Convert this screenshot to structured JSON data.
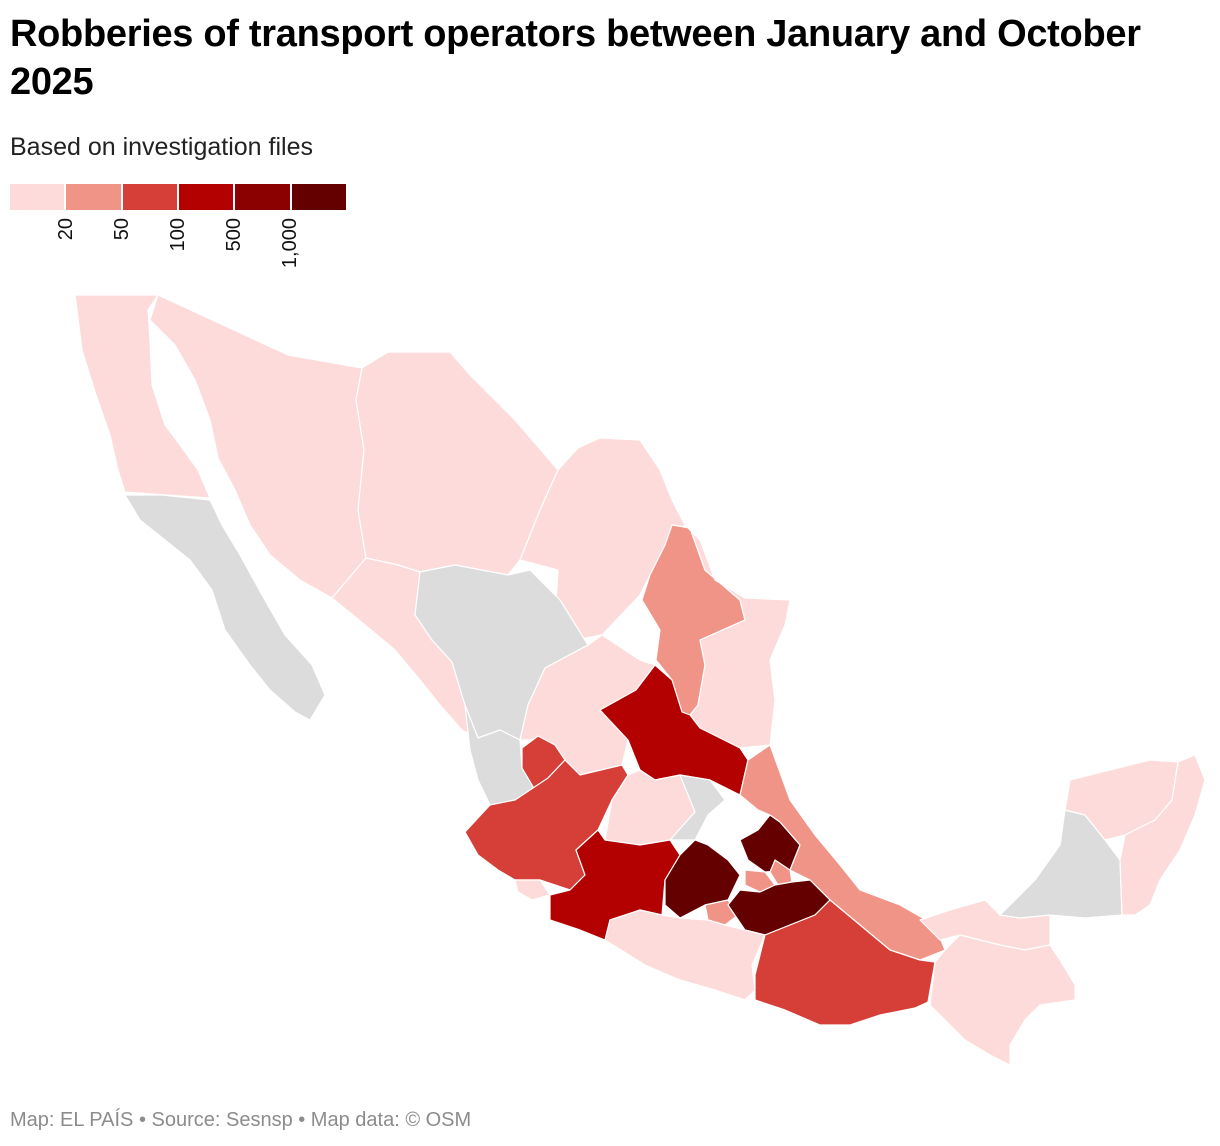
{
  "title": "Robberies of transport operators between January and October 2025",
  "subtitle": "Based on investigation files",
  "footer": "Map: EL PAÍS • Source: Sesnsp • Map data: © OSM",
  "colors": {
    "no_data": "#dcdcdc",
    "bin_1": "#fddbdb",
    "bin_2": "#f09488",
    "bin_3": "#d63f37",
    "bin_4": "#b30000",
    "bin_5": "#8b0000",
    "bin_6": "#650000"
  },
  "legend": {
    "bins": [
      "bin_1",
      "bin_2",
      "bin_3",
      "bin_4",
      "bin_5",
      "bin_6"
    ],
    "thresholds": [
      "20",
      "50",
      "100",
      "500",
      "1,000"
    ]
  },
  "states": [
    {
      "name": "Baja California",
      "bin": "bin_1"
    },
    {
      "name": "Baja California Sur",
      "bin": "no_data"
    },
    {
      "name": "Sonora",
      "bin": "bin_1"
    },
    {
      "name": "Chihuahua",
      "bin": "bin_1"
    },
    {
      "name": "Coahuila",
      "bin": "bin_1"
    },
    {
      "name": "Nuevo León",
      "bin": "bin_2"
    },
    {
      "name": "Tamaulipas",
      "bin": "bin_1"
    },
    {
      "name": "Sinaloa",
      "bin": "bin_1"
    },
    {
      "name": "Durango",
      "bin": "no_data"
    },
    {
      "name": "Zacatecas",
      "bin": "bin_1"
    },
    {
      "name": "San Luis Potosí",
      "bin": "bin_4"
    },
    {
      "name": "Nayarit",
      "bin": "no_data"
    },
    {
      "name": "Aguascalientes",
      "bin": "bin_3"
    },
    {
      "name": "Jalisco",
      "bin": "bin_3"
    },
    {
      "name": "Guanajuato",
      "bin": "bin_1"
    },
    {
      "name": "Querétaro",
      "bin": "no_data"
    },
    {
      "name": "Hidalgo",
      "bin": "bin_6"
    },
    {
      "name": "Veracruz",
      "bin": "bin_2"
    },
    {
      "name": "Colima",
      "bin": "bin_1"
    },
    {
      "name": "Michoacán",
      "bin": "bin_4"
    },
    {
      "name": "Estado de México",
      "bin": "bin_6"
    },
    {
      "name": "Ciudad de México",
      "bin": "bin_2"
    },
    {
      "name": "Morelos",
      "bin": "bin_2"
    },
    {
      "name": "Tlaxcala",
      "bin": "bin_2"
    },
    {
      "name": "Puebla",
      "bin": "bin_6"
    },
    {
      "name": "Guerrero",
      "bin": "bin_1"
    },
    {
      "name": "Oaxaca",
      "bin": "bin_3"
    },
    {
      "name": "Tabasco",
      "bin": "bin_1"
    },
    {
      "name": "Chiapas",
      "bin": "bin_1"
    },
    {
      "name": "Campeche",
      "bin": "no_data"
    },
    {
      "name": "Yucatán",
      "bin": "bin_1"
    },
    {
      "name": "Quintana Roo",
      "bin": "bin_1"
    }
  ]
}
